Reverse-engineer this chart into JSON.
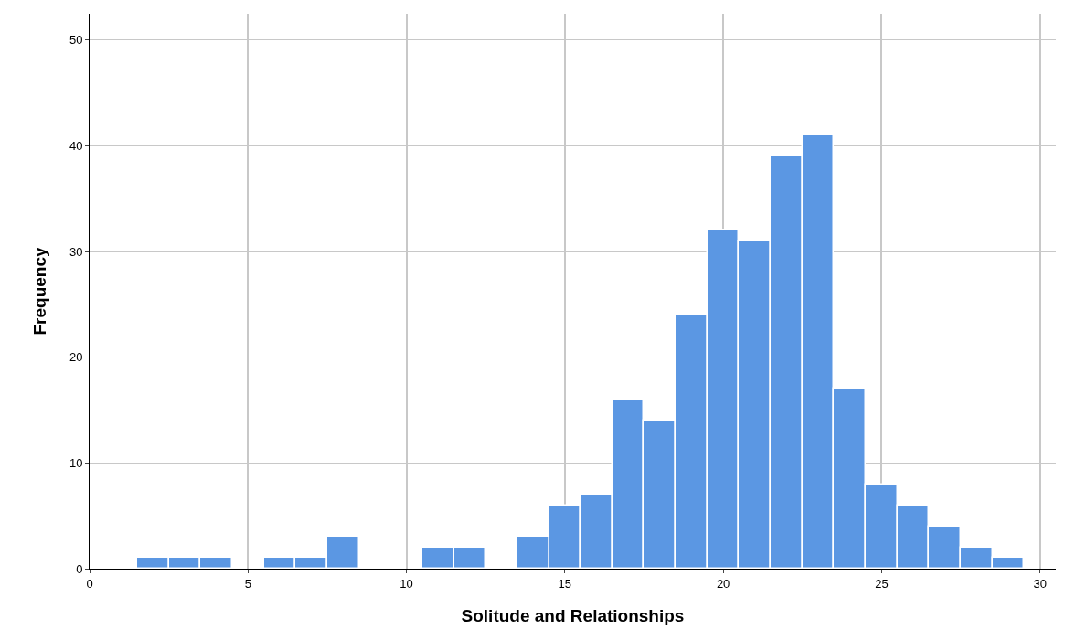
{
  "chart_data": {
    "type": "histogram",
    "xlabel": "Solitude and Relationships",
    "ylabel": "Frequency",
    "bins": [
      1.5,
      2.5,
      3.5,
      4.5,
      5.5,
      6.5,
      7.5,
      8.5,
      9.5,
      10.5,
      11.5,
      12.5,
      13.5,
      14.5,
      15.5,
      16.5,
      17.5,
      18.5,
      19.5,
      20.5,
      21.5,
      22.5,
      23.5,
      24.5,
      25.5,
      26.5,
      27.5,
      28.5,
      29.5
    ],
    "values": [
      1,
      1,
      1,
      0,
      1,
      1,
      3,
      0,
      0,
      2,
      2,
      0,
      3,
      6,
      7,
      16,
      14,
      24,
      32,
      31,
      39,
      41,
      17,
      8,
      6,
      4,
      2,
      1
    ],
    "color": "#5b97e3",
    "xlim": [
      0,
      30.5
    ],
    "xticks": [
      0,
      5,
      10,
      15,
      20,
      25,
      30
    ],
    "ylim": [
      0,
      52.5
    ],
    "yticks": [
      0,
      10,
      20,
      30,
      40,
      50
    ],
    "grid": true
  }
}
